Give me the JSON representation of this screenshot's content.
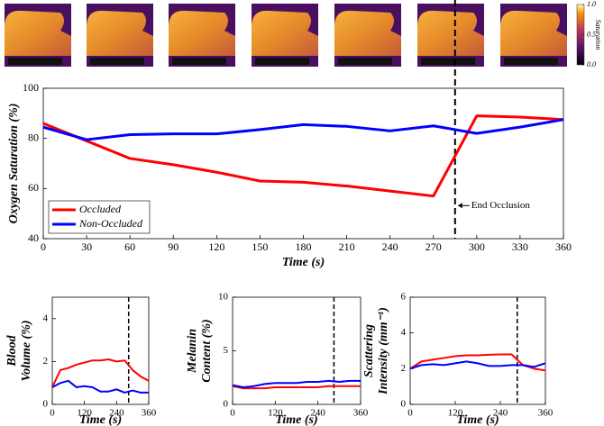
{
  "colorbar": {
    "label": "Saturation",
    "ticks": [
      {
        "value": 0,
        "label": "0.0"
      },
      {
        "value": 0.5,
        "label": "0.5"
      },
      {
        "value": 1,
        "label": "1.0"
      }
    ]
  },
  "chart_data": [
    {
      "type": "line",
      "x": [
        0,
        30,
        60,
        90,
        120,
        150,
        180,
        210,
        240,
        270,
        300,
        330,
        360
      ],
      "series": [
        {
          "name": "Occluded",
          "color": "#ff0000",
          "values": [
            86,
            79,
            72,
            69.5,
            66.5,
            63,
            62.5,
            61,
            59,
            57,
            89,
            88.5,
            87.5
          ]
        },
        {
          "name": "Non-Occluded",
          "color": "#0000ff",
          "values": [
            84.5,
            79.5,
            81.5,
            81.8,
            81.8,
            83.5,
            85.5,
            84.8,
            83,
            85,
            82,
            84.5,
            87.5
          ]
        }
      ],
      "xlim": [
        0,
        360
      ],
      "xticks": [
        0,
        30,
        60,
        90,
        120,
        150,
        180,
        210,
        240,
        270,
        300,
        330,
        360
      ],
      "ylim": [
        40,
        100
      ],
      "yticks": [
        40,
        60,
        80,
        100
      ],
      "xlabel": "Time (s)",
      "ylabel": [
        "Oxygen Saturation (%)"
      ],
      "vline": 285,
      "annotation": "End Occlusion",
      "legend": "lower left"
    },
    {
      "type": "line",
      "x": [
        0,
        30,
        60,
        90,
        120,
        150,
        180,
        210,
        240,
        270,
        300,
        330,
        360
      ],
      "series": [
        {
          "color": "#ff0000",
          "values": [
            0.8,
            1.6,
            1.7,
            1.85,
            1.95,
            2.05,
            2.05,
            2.1,
            2.0,
            2.05,
            1.6,
            1.3,
            1.1
          ]
        },
        {
          "color": "#0000ff",
          "values": [
            0.8,
            1.0,
            1.1,
            0.8,
            0.85,
            0.8,
            0.6,
            0.6,
            0.7,
            0.55,
            0.65,
            0.55,
            0.55
          ]
        }
      ],
      "xlim": [
        0,
        360
      ],
      "xticks": [
        0,
        120,
        240,
        360
      ],
      "ylim": [
        0,
        5
      ],
      "yticks": [
        0,
        2,
        4
      ],
      "xlabel": "Time (s)",
      "ylabel": [
        "Blood",
        "Volume (%)"
      ],
      "vline": 285
    },
    {
      "type": "line",
      "x": [
        0,
        30,
        60,
        90,
        120,
        150,
        180,
        210,
        240,
        270,
        300,
        330,
        360
      ],
      "series": [
        {
          "color": "#ff0000",
          "values": [
            1.7,
            1.5,
            1.5,
            1.5,
            1.6,
            1.6,
            1.6,
            1.6,
            1.6,
            1.7,
            1.7,
            1.7,
            1.7
          ]
        },
        {
          "color": "#0000ff",
          "values": [
            1.8,
            1.6,
            1.7,
            1.9,
            2.0,
            2.0,
            2.0,
            2.1,
            2.1,
            2.2,
            2.1,
            2.2,
            2.2
          ]
        }
      ],
      "xlim": [
        0,
        360
      ],
      "xticks": [
        0,
        120,
        240,
        360
      ],
      "ylim": [
        0,
        10
      ],
      "yticks": [
        0,
        5,
        10
      ],
      "xlabel": "Time (s)",
      "ylabel": [
        "Melanin",
        "Content (%)"
      ],
      "vline": 285
    },
    {
      "type": "line",
      "x": [
        0,
        30,
        60,
        90,
        120,
        150,
        180,
        210,
        240,
        270,
        300,
        330,
        360
      ],
      "series": [
        {
          "color": "#ff0000",
          "values": [
            2.0,
            2.4,
            2.5,
            2.6,
            2.7,
            2.75,
            2.75,
            2.78,
            2.8,
            2.8,
            2.2,
            2.0,
            1.9
          ]
        },
        {
          "color": "#0000ff",
          "values": [
            2.0,
            2.2,
            2.25,
            2.2,
            2.3,
            2.4,
            2.3,
            2.15,
            2.15,
            2.2,
            2.2,
            2.1,
            2.3
          ]
        }
      ],
      "xlim": [
        0,
        360
      ],
      "xticks": [
        0,
        120,
        240,
        360
      ],
      "ylim": [
        0,
        6
      ],
      "yticks": [
        0,
        2,
        4,
        6
      ],
      "xlabel": "Time (s)",
      "ylabel": [
        "Scattering",
        "Intensity (mm⁻¹)"
      ],
      "vline": 285
    }
  ]
}
